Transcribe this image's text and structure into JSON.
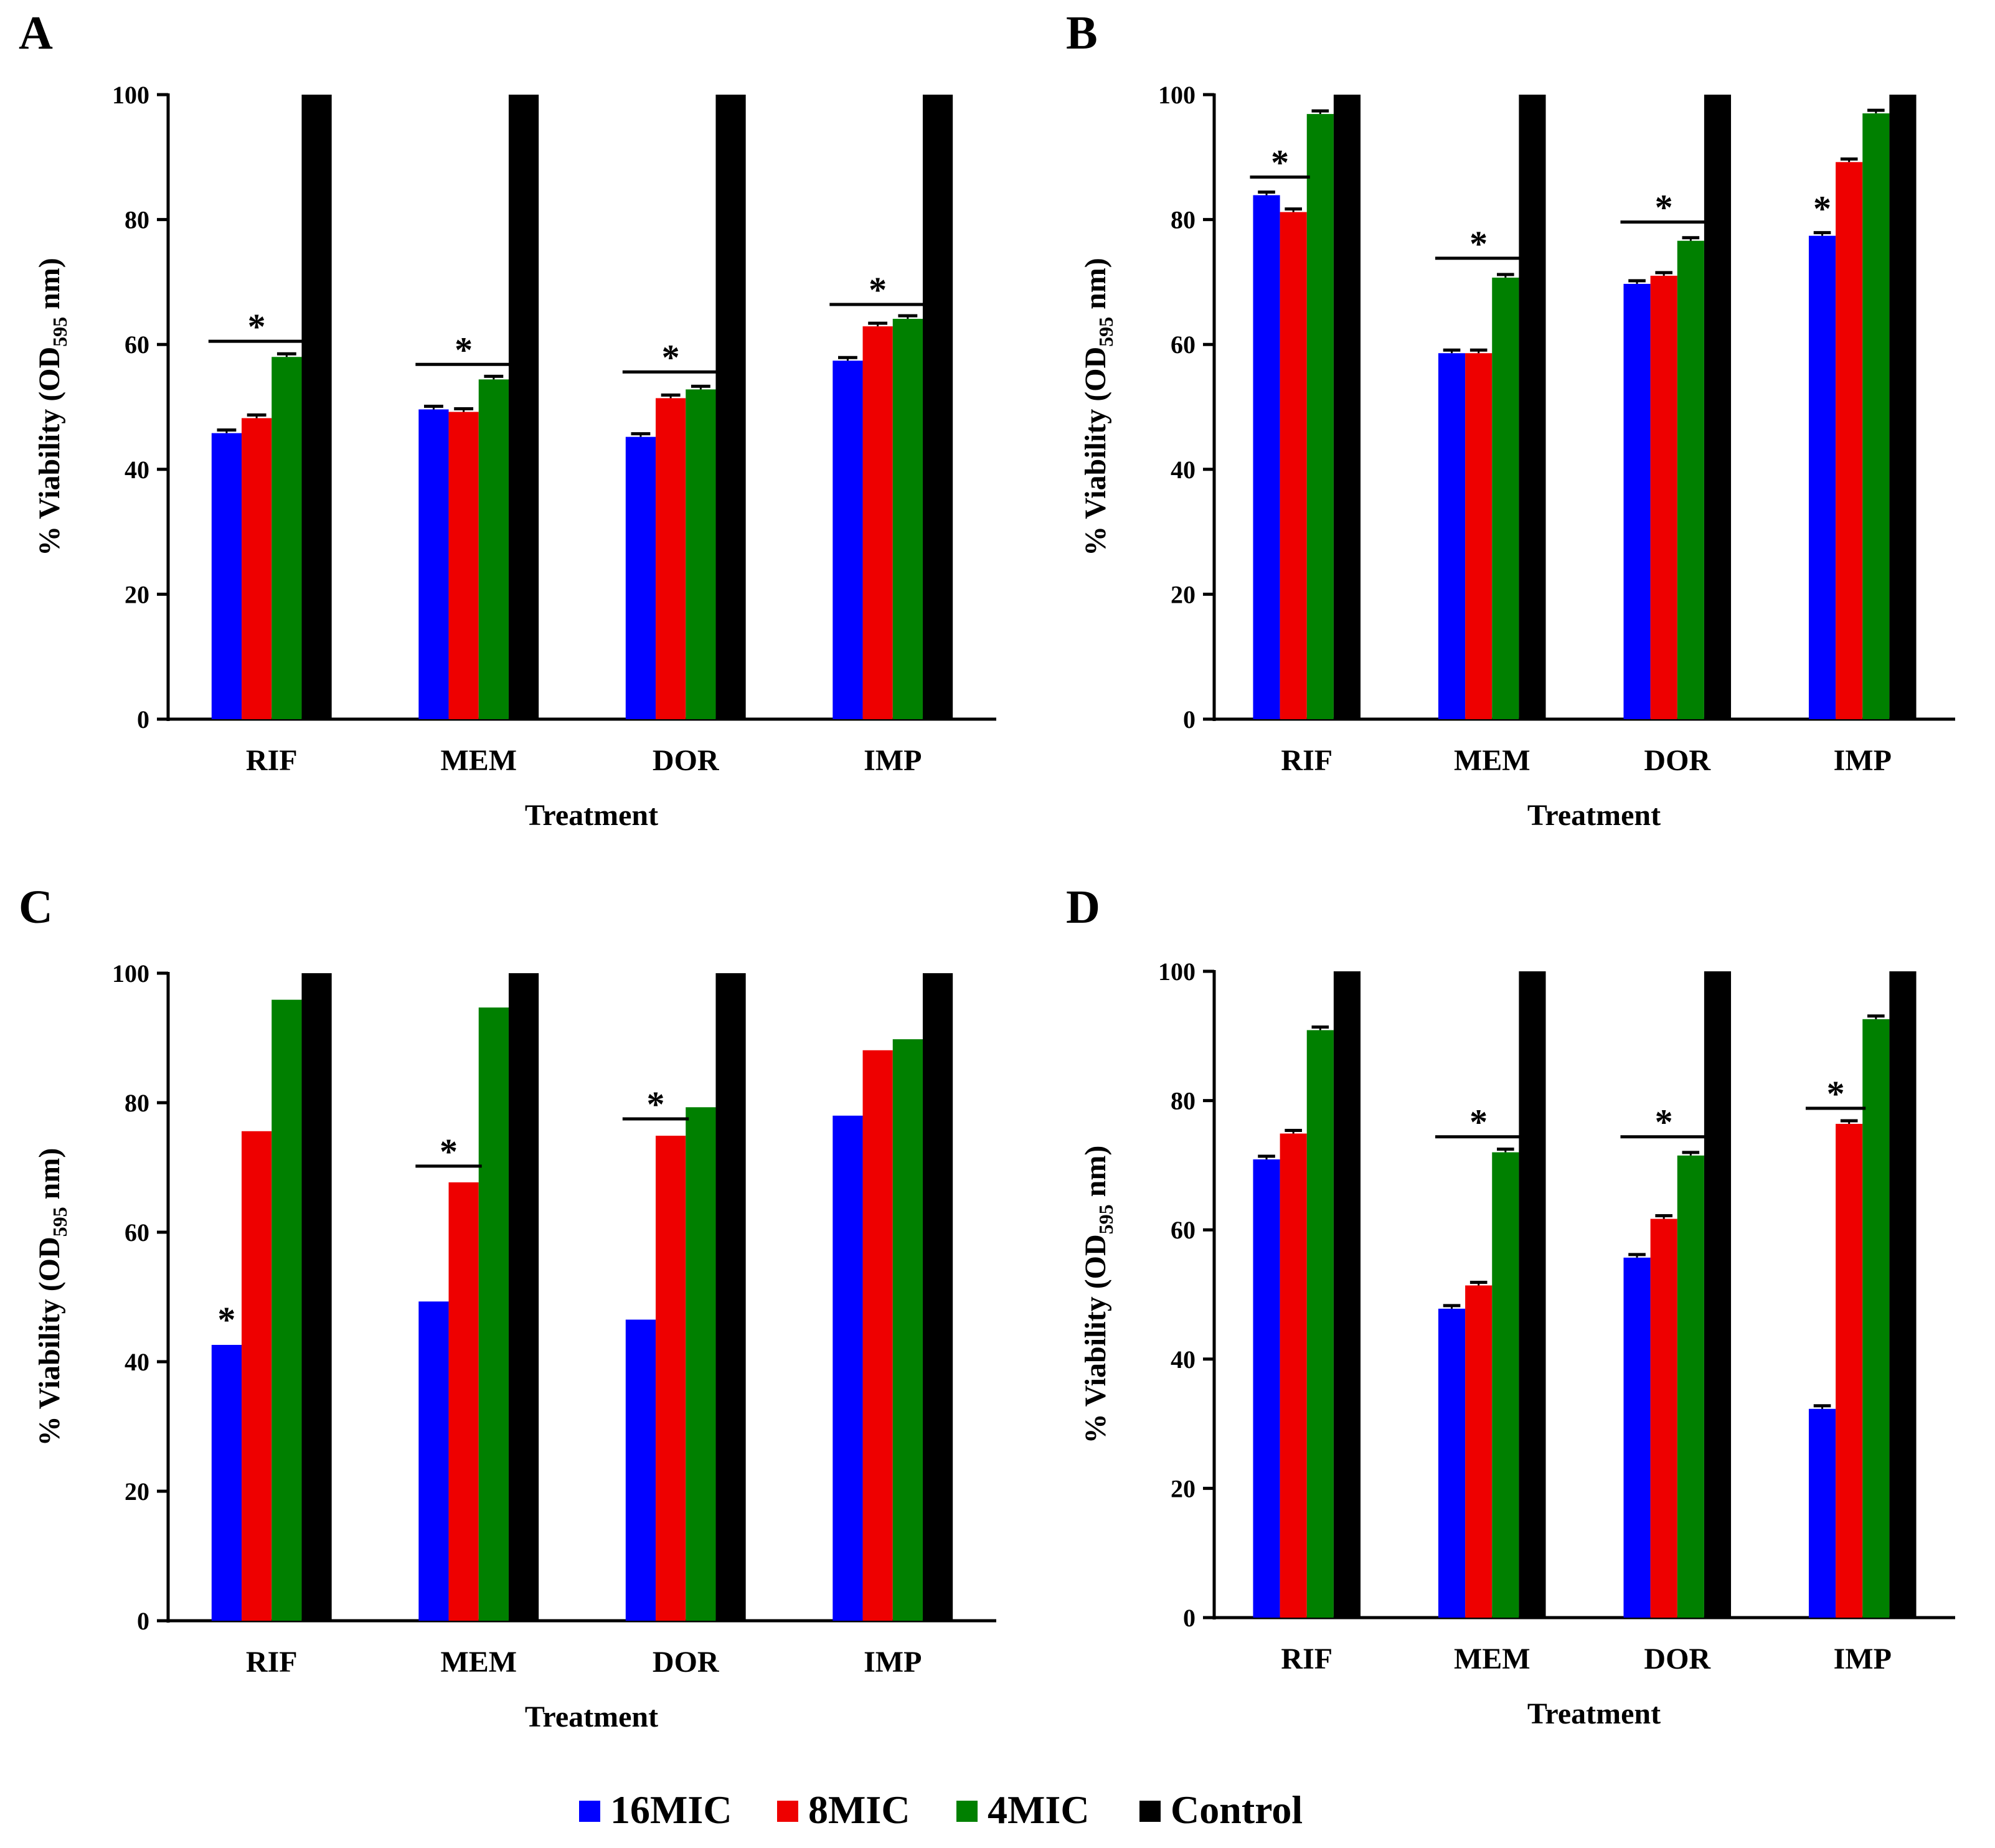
{
  "legend": {
    "entries": [
      {
        "name": "16MIC",
        "color": "#0000ff"
      },
      {
        "name": "8MIC",
        "color": "#ee0000"
      },
      {
        "name": "4MIC",
        "color": "#008000"
      },
      {
        "name": "Control",
        "color": "#000000"
      }
    ]
  },
  "chart_data": [
    {
      "panel": "A",
      "type": "bar",
      "xlabel": "Treatment",
      "ylabel": "% Viability (OD",
      "ylabel_sub": "595",
      "ylabel_tail": " nm)",
      "ylim": [
        0,
        100
      ],
      "yticks": [
        "0",
        "20",
        "40",
        "60",
        "80",
        "100"
      ],
      "categories": [
        "RIF",
        "MEM",
        "DOR",
        "IMP"
      ],
      "series": [
        {
          "name": "16MIC",
          "values": [
            45.8,
            49.6,
            45.2,
            57.4
          ]
        },
        {
          "name": "8MIC",
          "values": [
            48.2,
            49.2,
            51.4,
            62.9
          ]
        },
        {
          "name": "4MIC",
          "values": [
            58.0,
            54.4,
            52.8,
            64.1
          ]
        },
        {
          "name": "Control",
          "values": [
            100,
            100,
            100,
            100
          ]
        }
      ],
      "error_bars": true,
      "significance": [
        {
          "category": 0,
          "from": 0,
          "to": 2,
          "y": 60.5,
          "label": "*"
        },
        {
          "category": 1,
          "from": 0,
          "to": 2,
          "y": 56.8,
          "label": "*"
        },
        {
          "category": 2,
          "from": 0,
          "to": 2,
          "y": 55.6,
          "label": "*"
        },
        {
          "category": 3,
          "from": 0,
          "to": 2,
          "y": 66.4,
          "label": "*"
        }
      ]
    },
    {
      "panel": "B",
      "type": "bar",
      "xlabel": "Treatment",
      "ylabel": "% Viability (OD",
      "ylabel_sub": "595",
      "ylabel_tail": " nm)",
      "ylim": [
        0,
        100
      ],
      "yticks": [
        "0",
        "20",
        "40",
        "60",
        "80",
        "100"
      ],
      "categories": [
        "RIF",
        "MEM",
        "DOR",
        "IMP"
      ],
      "series": [
        {
          "name": "16MIC",
          "values": [
            83.9,
            58.6,
            69.7,
            77.4
          ]
        },
        {
          "name": "8MIC",
          "values": [
            81.2,
            58.6,
            71.0,
            89.2
          ]
        },
        {
          "name": "4MIC",
          "values": [
            96.9,
            70.7,
            76.6,
            97.0
          ]
        },
        {
          "name": "Control",
          "values": [
            100,
            100,
            100,
            100
          ]
        }
      ],
      "error_bars": true,
      "significance": [
        {
          "category": 0,
          "from": 0,
          "to": 1,
          "y": 86.8,
          "label": "*"
        },
        {
          "category": 1,
          "from": 0,
          "to": 2,
          "y": 73.8,
          "label": "*"
        },
        {
          "category": 2,
          "from": 0,
          "to": 2,
          "y": 79.6,
          "label": "*"
        },
        {
          "category": 3,
          "from": 0,
          "to": 0,
          "y": 80.4,
          "label": "*"
        }
      ]
    },
    {
      "panel": "C",
      "type": "bar",
      "xlabel": "Treatment",
      "ylabel": "% Viability (OD",
      "ylabel_sub": "595",
      "ylabel_tail": " nm)",
      "ylim": [
        0,
        100
      ],
      "yticks": [
        "0",
        "20",
        "40",
        "60",
        "80",
        "100"
      ],
      "categories": [
        "RIF",
        "MEM",
        "DOR",
        "IMP"
      ],
      "series": [
        {
          "name": "16MIC",
          "values": [
            42.6,
            49.3,
            46.5,
            78.0
          ]
        },
        {
          "name": "8MIC",
          "values": [
            75.6,
            67.7,
            74.9,
            88.1
          ]
        },
        {
          "name": "4MIC",
          "values": [
            95.9,
            94.7,
            79.3,
            89.8
          ]
        },
        {
          "name": "Control",
          "values": [
            100,
            100,
            100,
            100
          ]
        }
      ],
      "error_bars": false,
      "significance": [
        {
          "category": 0,
          "from": 0,
          "to": 0,
          "y": 45.2,
          "label": "*"
        },
        {
          "category": 1,
          "from": 0,
          "to": 1,
          "y": 70.2,
          "label": "*"
        },
        {
          "category": 2,
          "from": 0,
          "to": 1,
          "y": 77.5,
          "label": "*"
        }
      ]
    },
    {
      "panel": "D",
      "type": "bar",
      "xlabel": "Treatment",
      "ylabel": "% Viability (OD",
      "ylabel_sub": "595",
      "ylabel_tail": " nm)",
      "ylim": [
        0,
        100
      ],
      "yticks": [
        "0",
        "20",
        "40",
        "60",
        "80",
        "100"
      ],
      "categories": [
        "RIF",
        "MEM",
        "DOR",
        "IMP"
      ],
      "series": [
        {
          "name": "16MIC",
          "values": [
            70.9,
            47.8,
            55.7,
            32.3
          ]
        },
        {
          "name": "8MIC",
          "values": [
            74.9,
            51.4,
            61.7,
            76.4
          ]
        },
        {
          "name": "4MIC",
          "values": [
            90.9,
            72.0,
            71.5,
            92.6
          ]
        },
        {
          "name": "Control",
          "values": [
            100,
            100,
            100,
            100
          ]
        }
      ],
      "error_bars": true,
      "significance": [
        {
          "category": 1,
          "from": 0,
          "to": 2,
          "y": 74.4,
          "label": "*"
        },
        {
          "category": 2,
          "from": 0,
          "to": 2,
          "y": 74.4,
          "label": "*"
        },
        {
          "category": 3,
          "from": 0,
          "to": 1,
          "y": 78.8,
          "label": "*"
        }
      ]
    }
  ]
}
